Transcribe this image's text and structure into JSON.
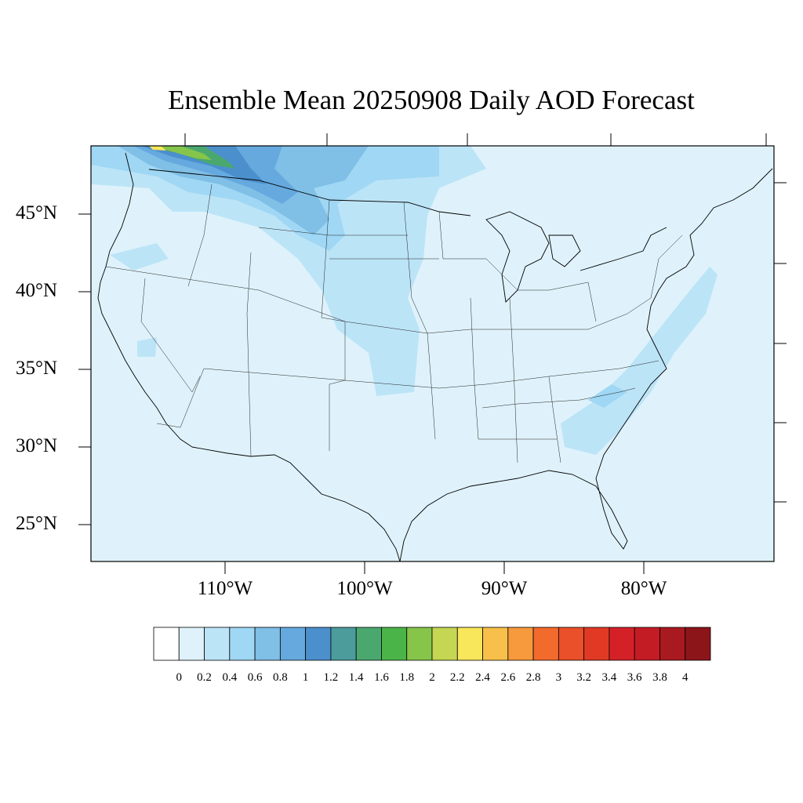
{
  "title": "Ensemble Mean 20250908 Daily AOD Forecast",
  "map": {
    "background_color": "#dff2fb",
    "lat_labels": [
      "45°N",
      "40°N",
      "35°N",
      "30°N",
      "25°N"
    ],
    "lon_labels": [
      "110°W",
      "100°W",
      "90°W",
      "80°W"
    ]
  },
  "colorbar": {
    "colors": [
      "#ffffff",
      "#dff2fb",
      "#bce4f7",
      "#9fd7f4",
      "#80bfe6",
      "#65a9de",
      "#4b8fcd",
      "#4c9c9c",
      "#4aa86f",
      "#4ab449",
      "#86c54a",
      "#c5d653",
      "#f8e65b",
      "#f8c04a",
      "#f69a3d",
      "#f36a2d",
      "#ea5029",
      "#e03a25",
      "#d42127",
      "#c31c24",
      "#a81a20",
      "#8c151a"
    ],
    "labels": [
      "0",
      "0.2",
      "0.4",
      "0.6",
      "0.8",
      "1",
      "1.2",
      "1.4",
      "1.6",
      "1.8",
      "2",
      "2.2",
      "2.4",
      "2.6",
      "2.8",
      "3",
      "3.2",
      "3.4",
      "3.6",
      "3.8",
      "4"
    ]
  }
}
